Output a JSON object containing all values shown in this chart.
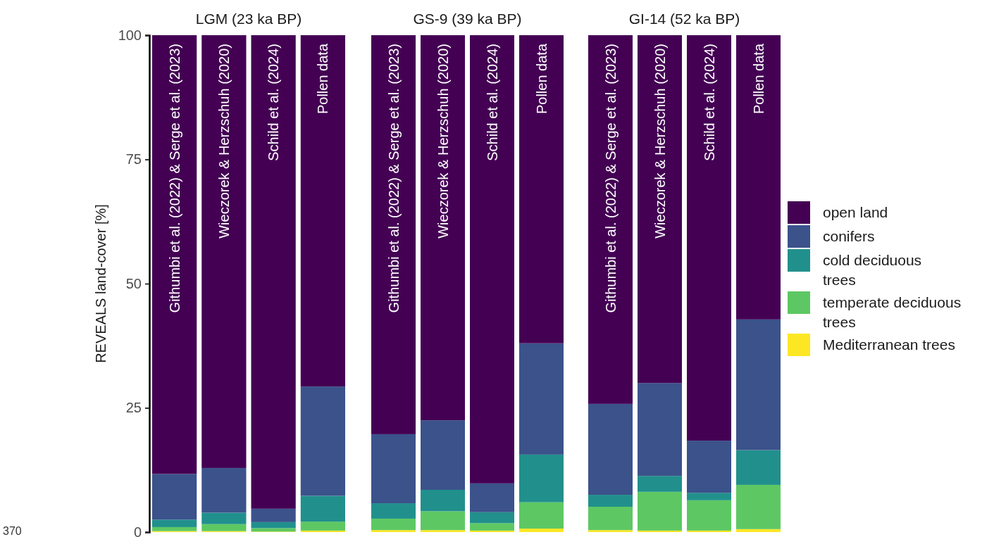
{
  "chart_data": [
    {
      "type": "bar",
      "title": "LGM (23 ka BP)",
      "ylabel": "REVEALS land-cover [%]",
      "categories": [
        "Githumbi et al. (2022) & Serge et al. (2023)",
        "Wieczorek & Herzschuh (2020)",
        "Schild et al. (2024)",
        "Pollen data"
      ],
      "stacked": true,
      "ylim": [
        0,
        100
      ],
      "yticks": [
        0,
        25,
        50,
        75,
        100
      ],
      "legend": false,
      "annotations": [
        "370"
      ],
      "series": [
        {
          "color": "#fde725",
          "values": [
            0.2,
            0.2,
            0.1,
            0.3
          ]
        },
        {
          "color": "#5dc863",
          "values": [
            0.8,
            1.4,
            0.7,
            1.8
          ]
        },
        {
          "color": "#21908c",
          "values": [
            1.5,
            2.3,
            1.2,
            5.2
          ]
        },
        {
          "color": "#3b528b",
          "values": [
            9.2,
            9.0,
            2.7,
            22.0
          ]
        },
        {
          "color": "#440154",
          "values": [
            88.3,
            87.1,
            95.3,
            70.7
          ]
        }
      ]
    },
    {
      "type": "bar",
      "title": "GS-9 (39 ka BP)",
      "categories": [
        "Githumbi et al. (2022) & Serge et al. (2023)",
        "Wieczorek & Herzschuh (2020)",
        "Schild et al. (2024)",
        "Pollen data"
      ],
      "stacked": true,
      "ylim": [
        0,
        100
      ],
      "tick_labels": "x",
      "legend": false,
      "series": [
        {
          "color": "#fde725",
          "values": [
            0.4,
            0.4,
            0.3,
            0.7
          ]
        },
        {
          "color": "#5dc863",
          "values": [
            2.3,
            3.8,
            1.5,
            5.3
          ]
        },
        {
          "color": "#21908c",
          "values": [
            3.1,
            4.3,
            2.2,
            9.6
          ]
        },
        {
          "color": "#3b528b",
          "values": [
            13.9,
            14.0,
            5.8,
            22.4
          ]
        },
        {
          "color": "#440154",
          "values": [
            80.3,
            77.5,
            90.2,
            62.0
          ]
        }
      ]
    },
    {
      "type": "bar",
      "title": "GI-14 (52 ka BP)",
      "categories": [
        "Githumbi et al. (2022) & Serge et al. (2023)",
        "Wieczorek & Herzschuh (2020)",
        "Schild et al. (2024)",
        "Pollen data"
      ],
      "stacked": true,
      "ylim": [
        0,
        100
      ],
      "tick_labels": "x",
      "legend": "right",
      "series": [
        {
          "name": "Mediterranean trees",
          "color": "#fde725",
          "values": [
            0.4,
            0.3,
            0.3,
            0.6
          ]
        },
        {
          "name": "temperate deciduous trees",
          "color": "#5dc863",
          "values": [
            4.7,
            7.8,
            6.1,
            8.9
          ]
        },
        {
          "name": "cold deciduous trees",
          "color": "#21908c",
          "values": [
            2.4,
            3.2,
            1.5,
            7.0
          ]
        },
        {
          "name": "conifers",
          "color": "#3b528b",
          "values": [
            18.3,
            18.7,
            10.5,
            26.3
          ]
        },
        {
          "name": "open land",
          "color": "#440154",
          "values": [
            74.2,
            70.0,
            81.6,
            57.2
          ]
        }
      ]
    }
  ]
}
